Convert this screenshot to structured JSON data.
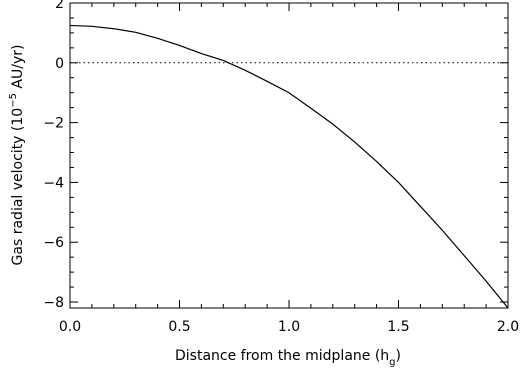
{
  "chart_data": {
    "type": "line",
    "xlabel": "Distance from the midplane (h",
    "xlabel_sub": "g",
    "xlabel_close": ")",
    "ylabel": "Gas radial velocity (10",
    "ylabel_sup": "−5",
    "ylabel_rest": " AU/yr)",
    "xlim": [
      0.0,
      2.0
    ],
    "ylim": [
      -8.2,
      2.0
    ],
    "x_ticks": [
      0.0,
      0.5,
      1.0,
      1.5,
      2.0
    ],
    "x_tick_labels": [
      "0.0",
      "0.5",
      "1.0",
      "1.5",
      "2.0"
    ],
    "y_ticks": [
      -8,
      -6,
      -4,
      -2,
      0,
      2
    ],
    "y_tick_labels": [
      "−8",
      "−6",
      "−4",
      "−2",
      "0",
      "2"
    ],
    "grid": false,
    "reference_line": {
      "y": 0,
      "style": "dotted"
    },
    "series": [
      {
        "x": [
          0.0,
          0.1,
          0.2,
          0.3,
          0.4,
          0.5,
          0.6,
          0.7,
          0.8,
          0.9,
          1.0,
          1.1,
          1.2,
          1.3,
          1.4,
          1.5,
          1.6,
          1.7,
          1.8,
          1.9,
          2.0
        ],
        "values": [
          1.25,
          1.22,
          1.14,
          1.02,
          0.82,
          0.58,
          0.31,
          0.08,
          -0.25,
          -0.62,
          -1.0,
          -1.52,
          -2.05,
          -2.65,
          -3.3,
          -4.0,
          -4.8,
          -5.6,
          -6.45,
          -7.3,
          -8.2
        ]
      }
    ]
  }
}
